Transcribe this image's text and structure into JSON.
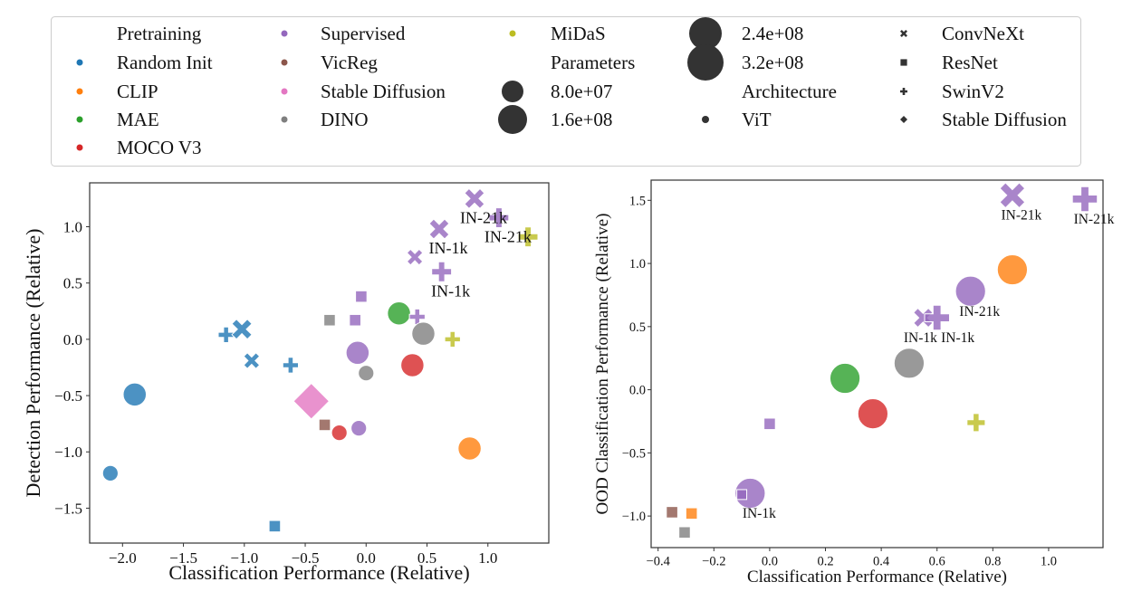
{
  "colors": {
    "Random Init": "#1f77b4",
    "CLIP": "#ff7f0e",
    "MAE": "#2ca02c",
    "MOCO V3": "#d62728",
    "Supervised": "#9467bd",
    "VicReg": "#8c564b",
    "Stable Diffusion": "#e377c2",
    "DINO": "#7f7f7f",
    "MiDaS": "#bcbd22"
  },
  "architecture_markers": {
    "ViT": "circle",
    "ConvNeXt": "x",
    "ResNet": "square",
    "SwinV2": "plus",
    "Stable Diffusion": "diamond"
  },
  "legend": {
    "placement": "top",
    "pretraining_title": "Pretraining",
    "pretraining": [
      "Random Init",
      "CLIP",
      "MAE",
      "MOCO V3",
      "Supervised",
      "VicReg",
      "Stable Diffusion",
      "DINO",
      "MiDaS"
    ],
    "parameters_title": "Parameters",
    "parameters": [
      "8.0e+07",
      "1.6e+08",
      "2.4e+08",
      "3.2e+08"
    ],
    "architecture_title": "Architecture",
    "architecture": [
      "ViT",
      "ConvNeXt",
      "ResNet",
      "SwinV2",
      "Stable Diffusion"
    ]
  },
  "chart_data": [
    {
      "type": "scatter",
      "xlabel": "Classification Performance (Relative)",
      "ylabel": "Detection Performance (Relative)",
      "xlim": [
        -2.27,
        1.5
      ],
      "ylim": [
        -1.81,
        1.39
      ],
      "xticks": [
        -2.0,
        -1.5,
        -1.0,
        -0.5,
        0.0,
        0.5,
        1.0
      ],
      "xtick_labels": [
        "−2.0",
        "−1.5",
        "−1.0",
        "−0.5",
        "0.0",
        "0.5",
        "1.0"
      ],
      "yticks": [
        1.0,
        0.5,
        0.0,
        -0.5,
        -1.0,
        -1.5
      ],
      "ytick_labels": [
        "1.0",
        "0.5",
        "0.0",
        "−0.5",
        "−1.0",
        "−1.5"
      ],
      "grid": false,
      "points": [
        {
          "x": -1.9,
          "y": -0.49,
          "pretraining": "Random Init",
          "arch": "ViT",
          "params": 304000000.0
        },
        {
          "x": -2.1,
          "y": -1.19,
          "pretraining": "Random Init",
          "arch": "ViT",
          "params": 86000000.0
        },
        {
          "x": -0.75,
          "y": -1.66,
          "pretraining": "Random Init",
          "arch": "ResNet",
          "params": 25000000.0
        },
        {
          "x": -1.15,
          "y": 0.04,
          "pretraining": "Random Init",
          "arch": "SwinV2",
          "params": 88000000.0
        },
        {
          "x": -1.02,
          "y": 0.09,
          "pretraining": "Random Init",
          "arch": "ConvNeXt",
          "params": 198000000.0
        },
        {
          "x": -0.94,
          "y": -0.19,
          "pretraining": "Random Init",
          "arch": "ConvNeXt",
          "params": 89000000.0
        },
        {
          "x": -0.62,
          "y": -0.23,
          "pretraining": "Random Init",
          "arch": "SwinV2",
          "params": 88000000.0
        },
        {
          "x": -0.45,
          "y": -0.55,
          "pretraining": "Stable Diffusion",
          "arch": "Stable Diffusion",
          "params": 860000000.0
        },
        {
          "x": -0.34,
          "y": -0.76,
          "pretraining": "VicReg",
          "arch": "ResNet",
          "params": 25000000.0
        },
        {
          "x": -0.22,
          "y": -0.83,
          "pretraining": "MOCO V3",
          "arch": "ViT",
          "params": 86000000.0
        },
        {
          "x": -0.06,
          "y": -0.79,
          "pretraining": "Supervised",
          "arch": "ViT",
          "params": 86000000.0
        },
        {
          "x": -0.3,
          "y": 0.17,
          "pretraining": "DINO",
          "arch": "ResNet",
          "params": 25000000.0
        },
        {
          "x": -0.09,
          "y": 0.17,
          "pretraining": "Supervised",
          "arch": "ResNet",
          "params": 25000000.0
        },
        {
          "x": -0.04,
          "y": 0.38,
          "pretraining": "Supervised",
          "arch": "ResNet",
          "params": 25000000.0
        },
        {
          "x": -0.07,
          "y": -0.12,
          "pretraining": "Supervised",
          "arch": "ViT",
          "params": 304000000.0
        },
        {
          "x": 0.0,
          "y": -0.3,
          "pretraining": "DINO",
          "arch": "ViT",
          "params": 86000000.0
        },
        {
          "x": 0.27,
          "y": 0.23,
          "pretraining": "MAE",
          "arch": "ViT",
          "params": 304000000.0
        },
        {
          "x": 0.42,
          "y": 0.2,
          "pretraining": "Supervised",
          "arch": "SwinV2",
          "params": 88000000.0
        },
        {
          "x": 0.47,
          "y": 0.05,
          "pretraining": "DINO",
          "arch": "ViT",
          "params": 304000000.0
        },
        {
          "x": 0.38,
          "y": -0.23,
          "pretraining": "MOCO V3",
          "arch": "ViT",
          "params": 304000000.0
        },
        {
          "x": 0.71,
          "y": 0.0,
          "pretraining": "MiDaS",
          "arch": "SwinV2",
          "params": 88000000.0
        },
        {
          "x": 0.85,
          "y": -0.97,
          "pretraining": "CLIP",
          "arch": "ViT",
          "params": 304000000.0
        },
        {
          "x": 0.4,
          "y": 0.73,
          "pretraining": "Supervised",
          "arch": "ConvNeXt",
          "params": 89000000.0
        },
        {
          "x": 0.6,
          "y": 0.98,
          "pretraining": "Supervised",
          "arch": "ConvNeXt",
          "params": 198000000.0,
          "label": "IN-1k"
        },
        {
          "x": 0.62,
          "y": 0.6,
          "pretraining": "Supervised",
          "arch": "SwinV2",
          "params": 197000000.0,
          "label": "IN-1k"
        },
        {
          "x": 0.89,
          "y": 1.25,
          "pretraining": "Supervised",
          "arch": "ConvNeXt",
          "params": 198000000.0,
          "label": "IN-21k"
        },
        {
          "x": 1.09,
          "y": 1.08,
          "pretraining": "Supervised",
          "arch": "SwinV2",
          "params": 197000000.0,
          "label": "IN-21k"
        },
        {
          "x": 1.33,
          "y": 0.91,
          "pretraining": "MiDaS",
          "arch": "SwinV2",
          "params": 197000000.0
        }
      ]
    },
    {
      "type": "scatter",
      "xlabel": "Classification Performance (Relative)",
      "ylabel": "OOD Classification Performance (Relative)",
      "xlim": [
        -0.425,
        1.195
      ],
      "ylim": [
        -1.25,
        1.66
      ],
      "xticks": [
        -0.4,
        -0.2,
        0.0,
        0.2,
        0.4,
        0.6,
        0.8,
        1.0
      ],
      "xtick_labels": [
        "−0.4",
        "−0.2",
        "0.0",
        "0.2",
        "0.4",
        "0.6",
        "0.8",
        "1.0"
      ],
      "yticks": [
        1.5,
        1.0,
        0.5,
        0.0,
        -0.5,
        -1.0
      ],
      "ytick_labels": [
        "1.5",
        "1.0",
        "0.5",
        "0.0",
        "−0.5",
        "−1.0"
      ],
      "grid": false,
      "points": [
        {
          "x": -0.35,
          "y": -0.97,
          "pretraining": "VicReg",
          "arch": "ResNet",
          "params": 25000000.0
        },
        {
          "x": -0.28,
          "y": -0.98,
          "pretraining": "CLIP",
          "arch": "ResNet",
          "params": 25000000.0
        },
        {
          "x": -0.305,
          "y": -1.13,
          "pretraining": "DINO",
          "arch": "ResNet",
          "params": 25000000.0
        },
        {
          "x": -0.07,
          "y": -0.82,
          "pretraining": "Supervised",
          "arch": "ViT",
          "params": 304000000.0,
          "label": "IN-1k"
        },
        {
          "x": -0.1,
          "y": -0.83,
          "pretraining": "Supervised",
          "arch": "ResNet",
          "params": 10000000.0
        },
        {
          "x": 0.0,
          "y": -0.27,
          "pretraining": "Supervised",
          "arch": "ResNet",
          "params": 25000000.0
        },
        {
          "x": 0.27,
          "y": 0.09,
          "pretraining": "MAE",
          "arch": "ViT",
          "params": 304000000.0
        },
        {
          "x": 0.37,
          "y": -0.19,
          "pretraining": "MOCO V3",
          "arch": "ViT",
          "params": 304000000.0
        },
        {
          "x": 0.5,
          "y": 0.21,
          "pretraining": "DINO",
          "arch": "ViT",
          "params": 304000000.0
        },
        {
          "x": 0.55,
          "y": 0.57,
          "pretraining": "Supervised",
          "arch": "ConvNeXt",
          "params": 100000000.0,
          "label": "IN-1k"
        },
        {
          "x": 0.6,
          "y": 0.57,
          "pretraining": "Supervised",
          "arch": "SwinV2",
          "params": 197000000.0,
          "label": "IN-1k"
        },
        {
          "x": 0.72,
          "y": 0.78,
          "pretraining": "Supervised",
          "arch": "ViT",
          "params": 304000000.0,
          "label": "IN-21k"
        },
        {
          "x": 0.87,
          "y": 0.95,
          "pretraining": "CLIP",
          "arch": "ViT",
          "params": 304000000.0
        },
        {
          "x": 0.74,
          "y": -0.26,
          "pretraining": "MiDaS",
          "arch": "SwinV2",
          "params": 88000000.0
        },
        {
          "x": 0.87,
          "y": 1.54,
          "pretraining": "Supervised",
          "arch": "ConvNeXt",
          "params": 198000000.0,
          "label": "IN-21k"
        },
        {
          "x": 1.13,
          "y": 1.51,
          "pretraining": "Supervised",
          "arch": "SwinV2",
          "params": 197000000.0,
          "label": "IN-21k"
        }
      ]
    }
  ]
}
